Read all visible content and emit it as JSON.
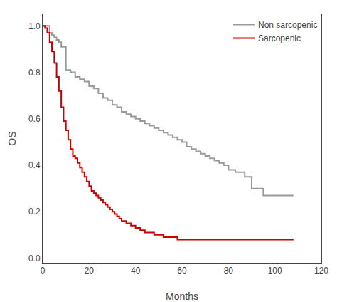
{
  "chart_data": {
    "type": "step",
    "xlabel": "Months",
    "ylabel": "OS",
    "xlim": [
      0,
      120
    ],
    "ylim": [
      -0.02,
      1.05
    ],
    "xticks": [
      0,
      20,
      40,
      60,
      80,
      100,
      120
    ],
    "yticks": [
      {
        "value": 0.0,
        "label": "0.0"
      },
      0.2,
      0.4,
      0.6,
      0.8,
      {
        "value": 1.0,
        "label": "1.0"
      }
    ],
    "grid": false,
    "legend": "upper right",
    "series": [
      {
        "name": "Non sarcopenic",
        "color": "#999999",
        "x": [
          0,
          3,
          4,
          5,
          6,
          7,
          8,
          10,
          12,
          14,
          16,
          18,
          20,
          22,
          24,
          26,
          28,
          30,
          32,
          34,
          36,
          38,
          40,
          42,
          44,
          46,
          48,
          50,
          52,
          54,
          56,
          58,
          60,
          62,
          64,
          66,
          68,
          70,
          72,
          74,
          76,
          78,
          80,
          83,
          87,
          90,
          95,
          108
        ],
        "values": [
          1.0,
          0.97,
          0.96,
          0.95,
          0.94,
          0.93,
          0.91,
          0.81,
          0.8,
          0.78,
          0.77,
          0.76,
          0.74,
          0.73,
          0.71,
          0.69,
          0.68,
          0.66,
          0.65,
          0.63,
          0.62,
          0.61,
          0.6,
          0.59,
          0.58,
          0.57,
          0.56,
          0.55,
          0.54,
          0.53,
          0.52,
          0.51,
          0.5,
          0.48,
          0.47,
          0.46,
          0.45,
          0.44,
          0.43,
          0.42,
          0.41,
          0.4,
          0.38,
          0.37,
          0.35,
          0.3,
          0.27,
          0.27
        ]
      },
      {
        "name": "Sarcopenic",
        "color": "#cc0000",
        "x": [
          0,
          1,
          2,
          3,
          4,
          5,
          6,
          7,
          8,
          9,
          10,
          11,
          12,
          13,
          14,
          15,
          16,
          17,
          18,
          19,
          20,
          21,
          22,
          23,
          24,
          25,
          26,
          27,
          28,
          29,
          30,
          31,
          32,
          33,
          34,
          36,
          38,
          40,
          42,
          44,
          46,
          48,
          50,
          52,
          55,
          58,
          62,
          65,
          70,
          75,
          80,
          108
        ],
        "values": [
          1.0,
          0.99,
          0.97,
          0.93,
          0.89,
          0.84,
          0.78,
          0.72,
          0.65,
          0.59,
          0.55,
          0.51,
          0.47,
          0.44,
          0.43,
          0.41,
          0.39,
          0.37,
          0.35,
          0.33,
          0.31,
          0.29,
          0.28,
          0.27,
          0.26,
          0.25,
          0.24,
          0.23,
          0.22,
          0.21,
          0.2,
          0.19,
          0.18,
          0.17,
          0.16,
          0.15,
          0.14,
          0.13,
          0.12,
          0.11,
          0.11,
          0.1,
          0.1,
          0.09,
          0.09,
          0.08,
          0.08,
          0.08,
          0.08,
          0.08,
          0.08,
          0.08
        ]
      }
    ]
  }
}
